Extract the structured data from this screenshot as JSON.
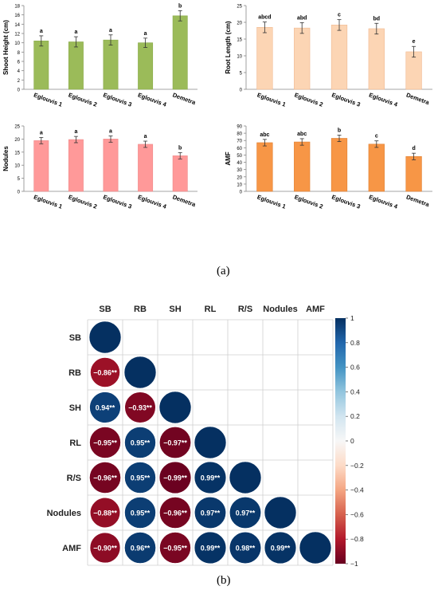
{
  "panel_labels": [
    "(a)",
    "(b)"
  ],
  "chart_data": [
    {
      "type": "bar",
      "ylabel": "Shoot Height (cm)",
      "ylim": [
        0,
        18
      ],
      "ytick_step": 2,
      "categories": [
        "Eglouvis 1",
        "Eglouvis 2",
        "Eglouvis 3",
        "Eglouvis 4",
        "Demetra"
      ],
      "values": [
        10.4,
        10.2,
        10.6,
        10.0,
        15.8
      ],
      "errors": [
        1.1,
        1.1,
        1.1,
        1.0,
        1.1
      ],
      "letters": [
        "a",
        "a",
        "a",
        "a",
        "b"
      ],
      "color": "#9bbb59",
      "edge": "#8aaa4a"
    },
    {
      "type": "bar",
      "ylabel": "Root Length (cm)",
      "ylim": [
        0,
        25
      ],
      "ytick_step": 5,
      "categories": [
        "Eglouvis 1",
        "Eglouvis 2",
        "Eglouvis 3",
        "Eglouvis 4",
        "Demetra"
      ],
      "values": [
        18.5,
        18.3,
        19.2,
        18.1,
        11.2
      ],
      "errors": [
        1.6,
        1.6,
        1.6,
        1.6,
        1.6
      ],
      "letters": [
        "abcd",
        "abd",
        "c",
        "bd",
        "e"
      ],
      "color": "#fcd5b4",
      "edge": "#f0b890"
    },
    {
      "type": "bar",
      "ylabel": "Nodules",
      "ylim": [
        0,
        25
      ],
      "ytick_step": 5,
      "categories": [
        "Eglouvis 1",
        "Eglouvis 2",
        "Eglouvis 3",
        "Eglouvis 4",
        "Demetra"
      ],
      "values": [
        19.4,
        19.8,
        20.0,
        18.0,
        13.6
      ],
      "errors": [
        1.2,
        1.2,
        1.2,
        1.2,
        1.2
      ],
      "letters": [
        "a",
        "a",
        "a",
        "a",
        "b"
      ],
      "color": "#ff9999",
      "edge": "#ee8888"
    },
    {
      "type": "bar",
      "ylabel": "AMF",
      "ylim": [
        0,
        90
      ],
      "ytick_step": 10,
      "categories": [
        "Eglouvis 1",
        "Eglouvis 2",
        "Eglouvis 3",
        "Eglouvis 4",
        "Demetra"
      ],
      "values": [
        67,
        68,
        73,
        65,
        48
      ],
      "errors": [
        4.5,
        4.5,
        4.5,
        4.5,
        4.5
      ],
      "letters": [
        "abc",
        "abc",
        "b",
        "c",
        "d"
      ],
      "color": "#f79646",
      "edge": "#e07f30"
    },
    {
      "type": "heatmap",
      "variables": [
        "SB",
        "RB",
        "SH",
        "RL",
        "R/S",
        "Nodules",
        "AMF"
      ],
      "layout": "lower-triangle",
      "matrix": [
        [
          1,
          null,
          null,
          null,
          null,
          null,
          null
        ],
        [
          -0.86,
          1,
          null,
          null,
          null,
          null,
          null
        ],
        [
          0.94,
          -0.93,
          1,
          null,
          null,
          null,
          null
        ],
        [
          -0.95,
          0.95,
          -0.97,
          1,
          null,
          null,
          null
        ],
        [
          -0.96,
          0.95,
          -0.99,
          0.99,
          1,
          null,
          null
        ],
        [
          -0.88,
          0.95,
          -0.96,
          0.97,
          0.97,
          1,
          null
        ],
        [
          -0.9,
          0.96,
          -0.95,
          0.99,
          0.98,
          0.99,
          1
        ]
      ],
      "labels": [
        [
          null,
          null,
          null,
          null,
          null,
          null,
          null
        ],
        [
          "−0.86**",
          null,
          null,
          null,
          null,
          null,
          null
        ],
        [
          "0.94**",
          "−0.93**",
          null,
          null,
          null,
          null,
          null
        ],
        [
          "−0.95**",
          "0.95**",
          "−0.97**",
          null,
          null,
          null,
          null
        ],
        [
          "−0.96**",
          "0.95**",
          "−0.99**",
          "0.99**",
          null,
          null,
          null
        ],
        [
          "−0.88**",
          "0.95**",
          "−0.96**",
          "0.97**",
          "0.97**",
          null,
          null
        ],
        [
          "−0.90**",
          "0.96**",
          "−0.95**",
          "0.99**",
          "0.98**",
          "0.99**",
          null
        ]
      ],
      "colorbar": {
        "range": [
          -1,
          1
        ],
        "ticks": [
          "1",
          "0.8",
          "0.6",
          "0.4",
          "0.2",
          "0",
          "−0.2",
          "−0.4",
          "−0.6",
          "−0.8",
          "−1"
        ],
        "colors": [
          "#053061",
          "#2166ac",
          "#4393c3",
          "#92c5de",
          "#d1e5f0",
          "#f7f7f7",
          "#fddbc7",
          "#f4a582",
          "#d6604d",
          "#b2182b",
          "#67001f"
        ]
      }
    }
  ]
}
